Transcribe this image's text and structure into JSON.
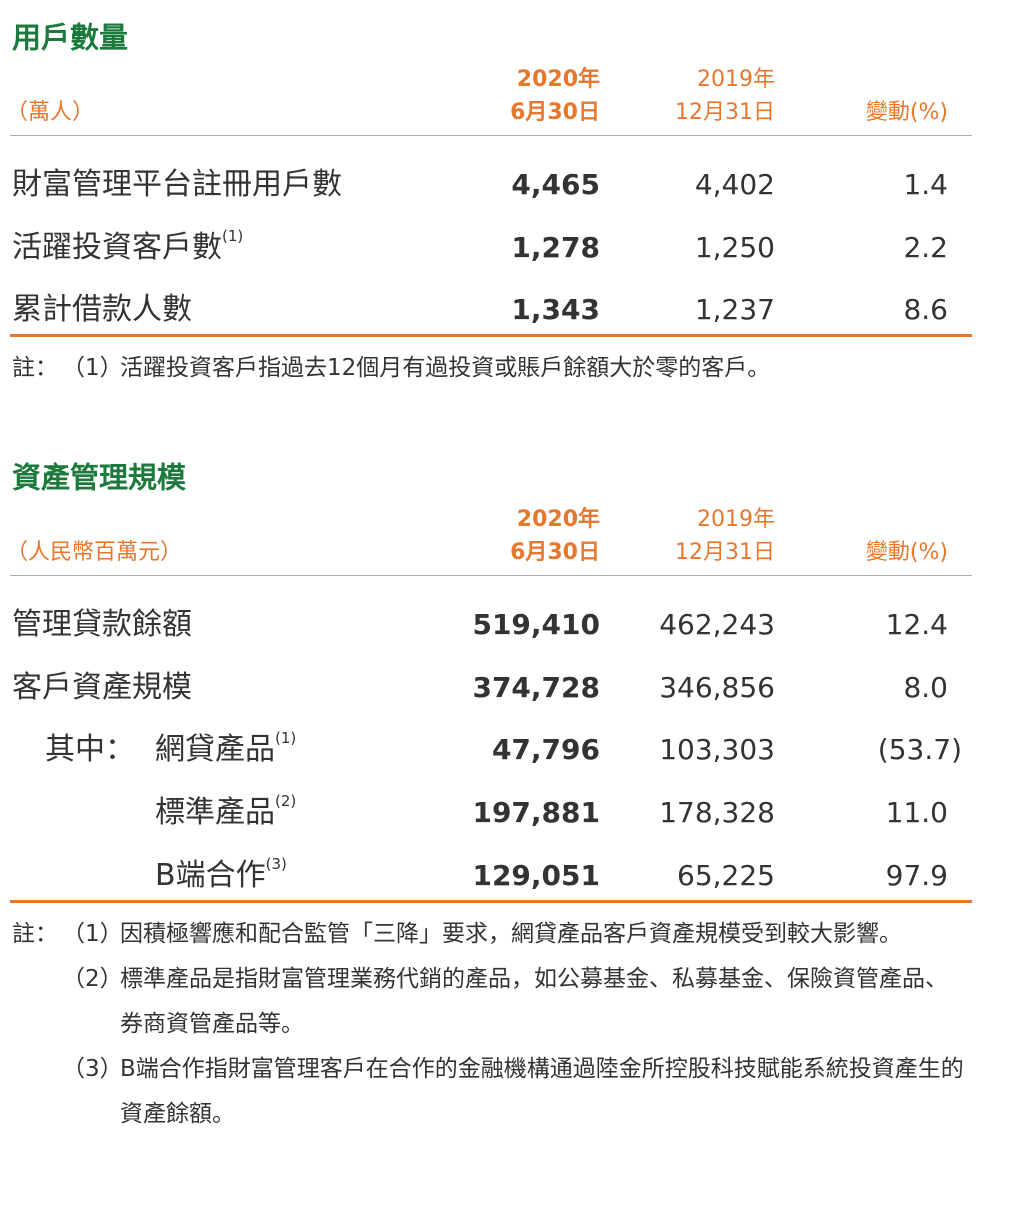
{
  "sections": [
    {
      "title": "用戶數量",
      "unit": "（萬人）",
      "columns": [
        [
          "2020年",
          "6月30日"
        ],
        [
          "2019年",
          "12月31日"
        ],
        [
          "變動(%)"
        ]
      ],
      "rows": [
        {
          "label": "財富管理平台註冊用戶數",
          "values": [
            "4,465",
            "4,402",
            "1.4"
          ]
        },
        {
          "label": "活躍投資客戶數",
          "ref": "(1)",
          "values": [
            "1,278",
            "1,250",
            "2.2"
          ]
        },
        {
          "label": "累計借款人數",
          "values": [
            "1,343",
            "1,237",
            "8.6"
          ]
        }
      ],
      "notes": {
        "prefix": "註：",
        "items": [
          {
            "marker": "（1）",
            "text": "活躍投資客戶指過去12個月有過投資或賬戶餘額大於零的客戶。"
          }
        ]
      }
    },
    {
      "title": "資產管理規模",
      "unit": "（人民幣百萬元）",
      "columns": [
        [
          "2020年",
          "6月30日"
        ],
        [
          "2019年",
          "12月31日"
        ],
        [
          "變動(%)"
        ]
      ],
      "rows": [
        {
          "label": "管理貸款餘額",
          "values": [
            "519,410",
            "462,243",
            "12.4"
          ]
        },
        {
          "label": "客戶資產規模",
          "values": [
            "374,728",
            "346,856",
            "8.0"
          ]
        },
        {
          "prefix": "其中：",
          "label": "網貸產品",
          "ref": "(1)",
          "values": [
            "47,796",
            "103,303",
            "(53.7)"
          ]
        },
        {
          "label": "標準產品",
          "ref": "(2)",
          "values": [
            "197,881",
            "178,328",
            "11.0"
          ]
        },
        {
          "label": "B端合作",
          "ref": "(3)",
          "values": [
            "129,051",
            "65,225",
            "97.9"
          ]
        }
      ],
      "notes": {
        "prefix": "註：",
        "items": [
          {
            "marker": "（1）",
            "text": "因積極響應和配合監管「三降」要求，網貸產品客戶資產規模受到較大影響。"
          },
          {
            "marker": "（2）",
            "text": "標準產品是指財富管理業務代銷的產品，如公募基金、私募基金、保險資管產品、券商資管產品等。"
          },
          {
            "marker": "（3）",
            "text": "B端合作指財富管理客戶在合作的金融機構通過陸金所控股科技賦能系統投資產生的資產餘額。"
          }
        ]
      }
    }
  ]
}
